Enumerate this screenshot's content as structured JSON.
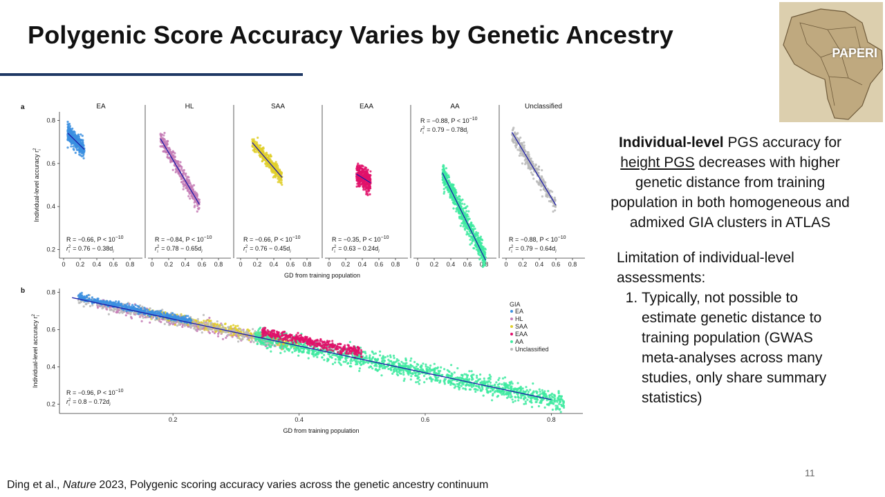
{
  "slide": {
    "title": "Polygenic Score Accuracy Varies by Genetic Ancestry",
    "page_number": "11",
    "logo_text": "PAPERI",
    "citation": {
      "prefix": "Ding et al., ",
      "journal": "Nature",
      "suffix": " 2023, Polygenic scoring accuracy varies across the genetic ancestry continuum"
    }
  },
  "right_text": {
    "p1_bold": "Individual-level",
    "p1_a": " PGS accuracy for ",
    "p1_underline": "height PGS",
    "p1_b": " decreases with higher genetic distance from training population in both homogeneous and admixed GIA clusters in ATLAS",
    "p2_intro": "Limitation of individual-level assessments:",
    "p2_items": [
      "Typically, not possible to estimate genetic distance to training population (GWAS meta-analyses across many studies, only share summary statistics)"
    ]
  },
  "colors": {
    "EA": "#3b8fe0",
    "HL": "#c47bb5",
    "SAA": "#e0cf2a",
    "EAA": "#e0106a",
    "AA": "#3eeaa0",
    "Unclassified": "#b8b8b8",
    "fit_line": "#1c1ca8"
  },
  "chart_data": [
    {
      "panel": "a",
      "type": "scatter",
      "xlabel": "GD from training population",
      "ylabel": "Individual-level accuracy r",
      "ylabel_sup": "2",
      "ylabel_sub": "i",
      "xlim": [
        -0.05,
        0.95
      ],
      "ylim": [
        0.16,
        0.84
      ],
      "xticks": [
        "0",
        "0.2",
        "0.4",
        "0.6",
        "0.8"
      ],
      "yticks": [
        "0.2",
        "0.4",
        "0.6",
        "0.8"
      ],
      "facets": [
        {
          "name": "EA",
          "color_key": "EA",
          "stat_r": "R = −0.66, P < 10",
          "stat_exp": "−10",
          "stat_eq": "= 0.76 − 0.38d",
          "stat_pos": "bottom",
          "cloud": {
            "x_min": 0.05,
            "x_max": 0.25,
            "line_x": [
              0.05,
              0.25
            ],
            "spread": 0.035
          },
          "fit": {
            "intercept": 0.76,
            "slope": -0.38
          }
        },
        {
          "name": "HL",
          "color_key": "HL",
          "stat_r": "R = −0.84, P < 10",
          "stat_exp": "−10",
          "stat_eq": "= 0.78 − 0.65d",
          "stat_pos": "bottom",
          "cloud": {
            "x_min": 0.1,
            "x_max": 0.57,
            "line_x": [
              0.1,
              0.57
            ],
            "spread": 0.035
          },
          "fit": {
            "intercept": 0.78,
            "slope": -0.65
          }
        },
        {
          "name": "SAA",
          "color_key": "SAA",
          "stat_r": "R = −0.66, P < 10",
          "stat_exp": "−10",
          "stat_eq": "= 0.76 − 0.45d",
          "stat_pos": "bottom",
          "cloud": {
            "x_min": 0.14,
            "x_max": 0.5,
            "line_x": [
              0.14,
              0.5
            ],
            "spread": 0.03
          },
          "fit": {
            "intercept": 0.76,
            "slope": -0.45
          }
        },
        {
          "name": "EAA",
          "color_key": "EAA",
          "stat_r": "R = −0.35, P < 10",
          "stat_exp": "−10",
          "stat_eq": "= 0.63 − 0.24d",
          "stat_pos": "bottom",
          "cloud": {
            "x_min": 0.33,
            "x_max": 0.5,
            "line_x": [
              0.33,
              0.5
            ],
            "spread": 0.045
          },
          "fit": {
            "intercept": 0.63,
            "slope": -0.24
          }
        },
        {
          "name": "AA",
          "color_key": "AA",
          "stat_r": "R = −0.88, P < 10",
          "stat_exp": "−10",
          "stat_eq": "= 0.79 − 0.78d",
          "stat_pos": "top",
          "cloud": {
            "x_min": 0.3,
            "x_max": 0.82,
            "line_x": [
              0.3,
              0.82
            ],
            "spread": 0.045
          },
          "fit": {
            "intercept": 0.79,
            "slope": -0.78
          }
        },
        {
          "name": "Unclassified",
          "color_key": "Unclassified",
          "stat_r": "R = −0.88, P < 10",
          "stat_exp": "−10",
          "stat_eq": "= 0.79 − 0.64d",
          "stat_pos": "bottom",
          "cloud": {
            "x_min": 0.07,
            "x_max": 0.6,
            "line_x": [
              0.07,
              0.6
            ],
            "spread": 0.035
          },
          "fit": {
            "intercept": 0.79,
            "slope": -0.64
          }
        }
      ]
    },
    {
      "panel": "b",
      "type": "scatter",
      "xlabel": "GD from training population",
      "ylabel": "Individual-level accuracy r",
      "ylabel_sup": "2",
      "ylabel_sub": "i",
      "xlim": [
        0.02,
        0.85
      ],
      "ylim": [
        0.15,
        0.82
      ],
      "xticks": [
        "0.2",
        "0.4",
        "0.6",
        "0.8"
      ],
      "xtick_values": [
        0.2,
        0.4,
        0.6,
        0.8
      ],
      "yticks": [
        "0.2",
        "0.4",
        "0.6",
        "0.8"
      ],
      "legend_title": "GIA",
      "legend_position": "top-right",
      "legend": [
        "EA",
        "HL",
        "SAA",
        "EAA",
        "AA",
        "Unclassified"
      ],
      "stat_r": "R = −0.96, P < 10",
      "stat_exp": "−10",
      "stat_eq": "= 0.8 − 0.72d",
      "fit": {
        "intercept": 0.8,
        "slope": -0.72,
        "x_range": [
          0.04,
          0.8
        ]
      },
      "clouds": [
        {
          "group": "HL",
          "x_min": 0.08,
          "x_max": 0.38,
          "spread": 0.025,
          "offset": -0.005
        },
        {
          "group": "SAA",
          "x_min": 0.16,
          "x_max": 0.4,
          "spread": 0.022,
          "offset": 0.005
        },
        {
          "group": "Unclassified",
          "x_min": 0.05,
          "x_max": 0.36,
          "spread": 0.025,
          "offset": 0.0
        },
        {
          "group": "AA",
          "x_min": 0.33,
          "x_max": 0.82,
          "spread": 0.04,
          "offset": 0.0
        },
        {
          "group": "EAA",
          "x_min": 0.34,
          "x_max": 0.5,
          "spread": 0.02,
          "offset": 0.035
        },
        {
          "group": "EA",
          "x_min": 0.05,
          "x_max": 0.23,
          "spread": 0.015,
          "offset": 0.01
        }
      ]
    }
  ]
}
